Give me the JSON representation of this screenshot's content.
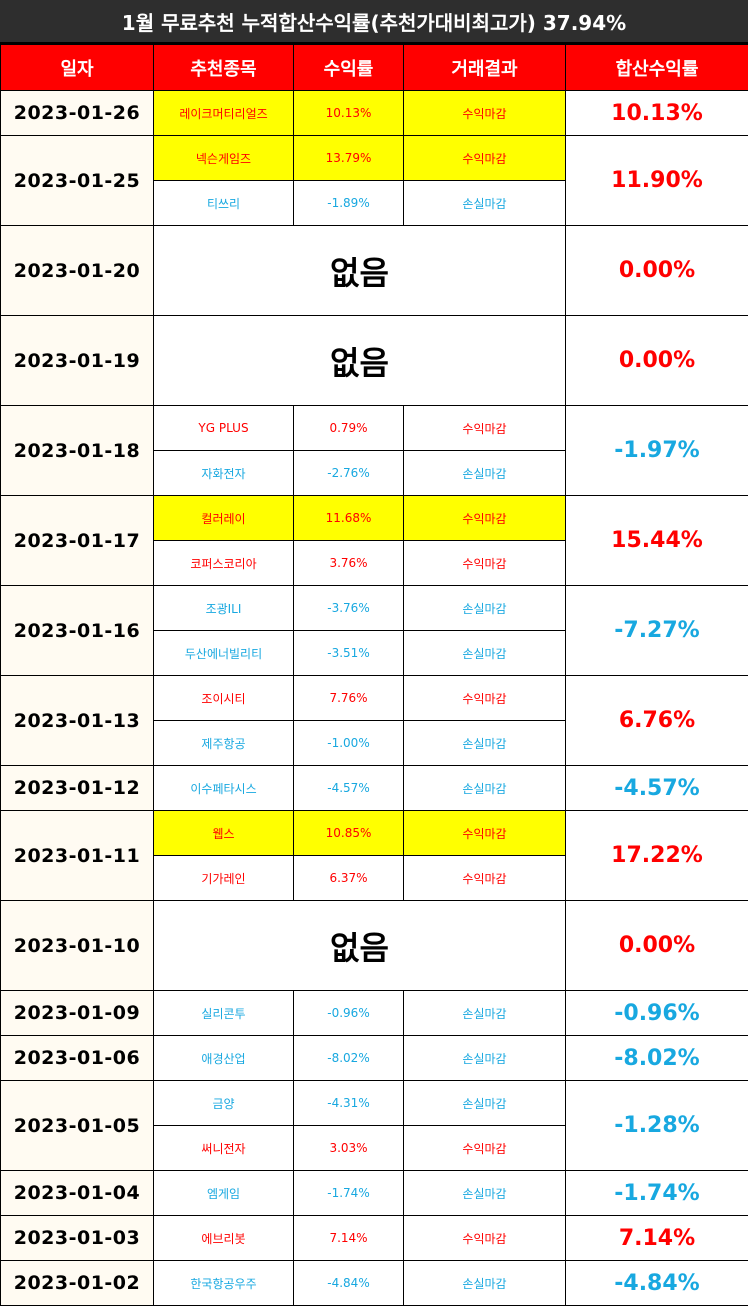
{
  "title": "1월 무료추천 누적합산수익률(추천가대비최고가) 37.94%",
  "headers": [
    "일자",
    "추천종목",
    "수익률",
    "거래결과",
    "합산수익률"
  ],
  "none_label": "없음",
  "colors": {
    "header_bg": "#ff0000",
    "title_bg": "#2e2e2e",
    "highlight": "#ffff00",
    "gain": "#ff0000",
    "loss": "#18a8e0",
    "date_bg": "#fffbf2"
  },
  "groups": [
    {
      "date": "2023-01-26",
      "total": "10.13%",
      "total_color": "red",
      "height": 45,
      "picks": [
        {
          "name": "레이크머티리얼즈",
          "ret": "10.13%",
          "result": "수익마감",
          "color": "red",
          "hl": true
        }
      ]
    },
    {
      "date": "2023-01-25",
      "total": "11.90%",
      "total_color": "red",
      "height": 90,
      "picks": [
        {
          "name": "넥슨게임즈",
          "ret": "13.79%",
          "result": "수익마감",
          "color": "red",
          "hl": true
        },
        {
          "name": "티쓰리",
          "ret": "-1.89%",
          "result": "손실마감",
          "color": "blue",
          "hl": false
        }
      ]
    },
    {
      "date": "2023-01-20",
      "total": "0.00%",
      "total_color": "red",
      "height": 90,
      "picks": []
    },
    {
      "date": "2023-01-19",
      "total": "0.00%",
      "total_color": "red",
      "height": 90,
      "picks": []
    },
    {
      "date": "2023-01-18",
      "total": "-1.97%",
      "total_color": "blue",
      "height": 90,
      "picks": [
        {
          "name": "YG PLUS",
          "ret": "0.79%",
          "result": "수익마감",
          "color": "red",
          "hl": false
        },
        {
          "name": "자화전자",
          "ret": "-2.76%",
          "result": "손실마감",
          "color": "blue",
          "hl": false
        }
      ]
    },
    {
      "date": "2023-01-17",
      "total": "15.44%",
      "total_color": "red",
      "height": 90,
      "picks": [
        {
          "name": "컬러레이",
          "ret": "11.68%",
          "result": "수익마감",
          "color": "red",
          "hl": true
        },
        {
          "name": "코퍼스코리아",
          "ret": "3.76%",
          "result": "수익마감",
          "color": "red",
          "hl": false
        }
      ]
    },
    {
      "date": "2023-01-16",
      "total": "-7.27%",
      "total_color": "blue",
      "height": 90,
      "picks": [
        {
          "name": "조광ILI",
          "ret": "-3.76%",
          "result": "손실마감",
          "color": "blue",
          "hl": false
        },
        {
          "name": "두산에너빌리티",
          "ret": "-3.51%",
          "result": "손실마감",
          "color": "blue",
          "hl": false
        }
      ]
    },
    {
      "date": "2023-01-13",
      "total": "6.76%",
      "total_color": "red",
      "height": 90,
      "picks": [
        {
          "name": "조이시티",
          "ret": "7.76%",
          "result": "수익마감",
          "color": "red",
          "hl": false
        },
        {
          "name": "제주항공",
          "ret": "-1.00%",
          "result": "손실마감",
          "color": "blue",
          "hl": false
        }
      ]
    },
    {
      "date": "2023-01-12",
      "total": "-4.57%",
      "total_color": "blue",
      "height": 45,
      "picks": [
        {
          "name": "이수페타시스",
          "ret": "-4.57%",
          "result": "손실마감",
          "color": "blue",
          "hl": false
        }
      ]
    },
    {
      "date": "2023-01-11",
      "total": "17.22%",
      "total_color": "red",
      "height": 90,
      "picks": [
        {
          "name": "웹스",
          "ret": "10.85%",
          "result": "수익마감",
          "color": "red",
          "hl": true
        },
        {
          "name": "기가레인",
          "ret": "6.37%",
          "result": "수익마감",
          "color": "red",
          "hl": false
        }
      ]
    },
    {
      "date": "2023-01-10",
      "total": "0.00%",
      "total_color": "red",
      "height": 90,
      "picks": []
    },
    {
      "date": "2023-01-09",
      "total": "-0.96%",
      "total_color": "blue",
      "height": 45,
      "picks": [
        {
          "name": "실리콘투",
          "ret": "-0.96%",
          "result": "손실마감",
          "color": "blue",
          "hl": false
        }
      ]
    },
    {
      "date": "2023-01-06",
      "total": "-8.02%",
      "total_color": "blue",
      "height": 45,
      "picks": [
        {
          "name": "애경산업",
          "ret": "-8.02%",
          "result": "손실마감",
          "color": "blue",
          "hl": false
        }
      ]
    },
    {
      "date": "2023-01-05",
      "total": "-1.28%",
      "total_color": "blue",
      "height": 90,
      "picks": [
        {
          "name": "금양",
          "ret": "-4.31%",
          "result": "손실마감",
          "color": "blue",
          "hl": false
        },
        {
          "name": "써니전자",
          "ret": "3.03%",
          "result": "수익마감",
          "color": "red",
          "hl": false
        }
      ]
    },
    {
      "date": "2023-01-04",
      "total": "-1.74%",
      "total_color": "blue",
      "height": 45,
      "picks": [
        {
          "name": "엠게임",
          "ret": "-1.74%",
          "result": "손실마감",
          "color": "blue",
          "hl": false
        }
      ]
    },
    {
      "date": "2023-01-03",
      "total": "7.14%",
      "total_color": "red",
      "height": 45,
      "picks": [
        {
          "name": "에브리봇",
          "ret": "7.14%",
          "result": "수익마감",
          "color": "red",
          "hl": false
        }
      ]
    },
    {
      "date": "2023-01-02",
      "total": "-4.84%",
      "total_color": "blue",
      "height": 45,
      "picks": [
        {
          "name": "한국항공우주",
          "ret": "-4.84%",
          "result": "손실마감",
          "color": "blue",
          "hl": false
        }
      ]
    }
  ]
}
